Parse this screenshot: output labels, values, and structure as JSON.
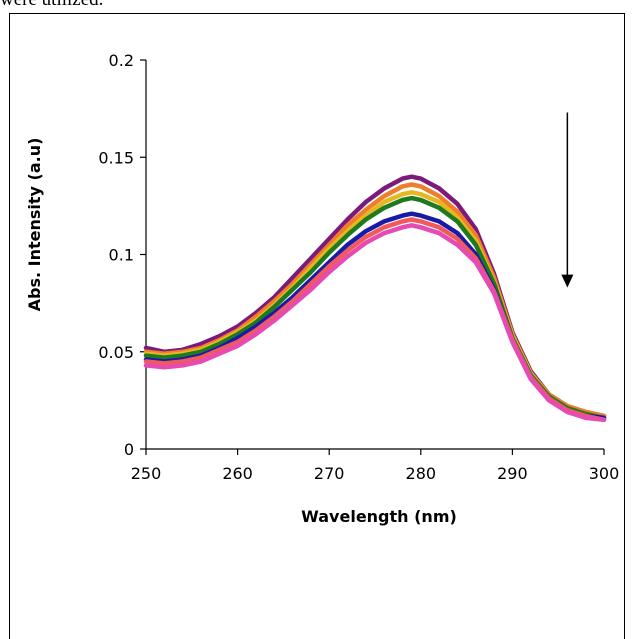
{
  "caption_fragment": "were utilized.",
  "chart_data": {
    "type": "line",
    "title": "",
    "xlabel": "Wavelength (nm)",
    "ylabel": "Abs. Intensity (a.u)",
    "xlim": [
      250,
      300
    ],
    "ylim": [
      0,
      0.2
    ],
    "x_ticks": [
      250,
      260,
      270,
      280,
      290,
      300
    ],
    "y_ticks": [
      0,
      0.05,
      0.1,
      0.15,
      0.2
    ],
    "x_tick_labels": [
      "250",
      "260",
      "270",
      "280",
      "290",
      "300"
    ],
    "y_tick_labels": [
      "0",
      "0.05",
      "0.1",
      "0.15",
      "0.2"
    ],
    "grid": false,
    "legend": "none",
    "annotation": {
      "type": "arrow",
      "direction": "down",
      "x_from": 296,
      "y_from": 0.173,
      "x_to": 296,
      "y_to": 0.083
    },
    "x": [
      250,
      252,
      254,
      256,
      258,
      260,
      262,
      264,
      266,
      268,
      270,
      272,
      274,
      276,
      278,
      279,
      280,
      282,
      284,
      286,
      288,
      290,
      292,
      294,
      296,
      298,
      300
    ],
    "series": [
      {
        "color": "#7b1a7b",
        "values": [
          0.052,
          0.05,
          0.051,
          0.054,
          0.058,
          0.063,
          0.07,
          0.078,
          0.088,
          0.098,
          0.108,
          0.118,
          0.127,
          0.134,
          0.139,
          0.14,
          0.139,
          0.134,
          0.126,
          0.113,
          0.09,
          0.06,
          0.04,
          0.028,
          0.022,
          0.019,
          0.017
        ]
      },
      {
        "color": "#f07d2a",
        "values": [
          0.05,
          0.049,
          0.05,
          0.052,
          0.056,
          0.061,
          0.068,
          0.076,
          0.085,
          0.095,
          0.105,
          0.115,
          0.123,
          0.13,
          0.135,
          0.136,
          0.135,
          0.13,
          0.122,
          0.11,
          0.088,
          0.059,
          0.039,
          0.028,
          0.022,
          0.019,
          0.017
        ]
      },
      {
        "color": "#e6b820",
        "values": [
          0.049,
          0.048,
          0.049,
          0.051,
          0.055,
          0.06,
          0.066,
          0.074,
          0.083,
          0.093,
          0.103,
          0.112,
          0.12,
          0.127,
          0.131,
          0.132,
          0.131,
          0.127,
          0.119,
          0.107,
          0.086,
          0.058,
          0.039,
          0.027,
          0.021,
          0.018,
          0.016
        ]
      },
      {
        "color": "#1f7a1f",
        "values": [
          0.048,
          0.047,
          0.048,
          0.05,
          0.054,
          0.059,
          0.065,
          0.073,
          0.082,
          0.091,
          0.101,
          0.11,
          0.118,
          0.124,
          0.128,
          0.129,
          0.128,
          0.124,
          0.117,
          0.105,
          0.085,
          0.057,
          0.038,
          0.027,
          0.021,
          0.018,
          0.016
        ]
      },
      {
        "color": "#1a1aa8",
        "values": [
          0.046,
          0.045,
          0.046,
          0.048,
          0.052,
          0.057,
          0.063,
          0.07,
          0.078,
          0.087,
          0.096,
          0.105,
          0.112,
          0.117,
          0.12,
          0.121,
          0.12,
          0.117,
          0.111,
          0.1,
          0.082,
          0.056,
          0.037,
          0.026,
          0.02,
          0.017,
          0.016
        ]
      },
      {
        "color": "#f05a5a",
        "values": [
          0.045,
          0.044,
          0.045,
          0.047,
          0.051,
          0.055,
          0.061,
          0.068,
          0.076,
          0.085,
          0.094,
          0.102,
          0.109,
          0.114,
          0.117,
          0.118,
          0.117,
          0.114,
          0.108,
          0.098,
          0.081,
          0.056,
          0.037,
          0.026,
          0.02,
          0.017,
          0.015
        ]
      },
      {
        "color": "#e64bb4",
        "values": [
          0.043,
          0.042,
          0.043,
          0.045,
          0.049,
          0.053,
          0.059,
          0.066,
          0.074,
          0.082,
          0.091,
          0.099,
          0.106,
          0.111,
          0.114,
          0.115,
          0.114,
          0.111,
          0.105,
          0.096,
          0.08,
          0.055,
          0.036,
          0.025,
          0.019,
          0.016,
          0.015
        ]
      }
    ]
  }
}
